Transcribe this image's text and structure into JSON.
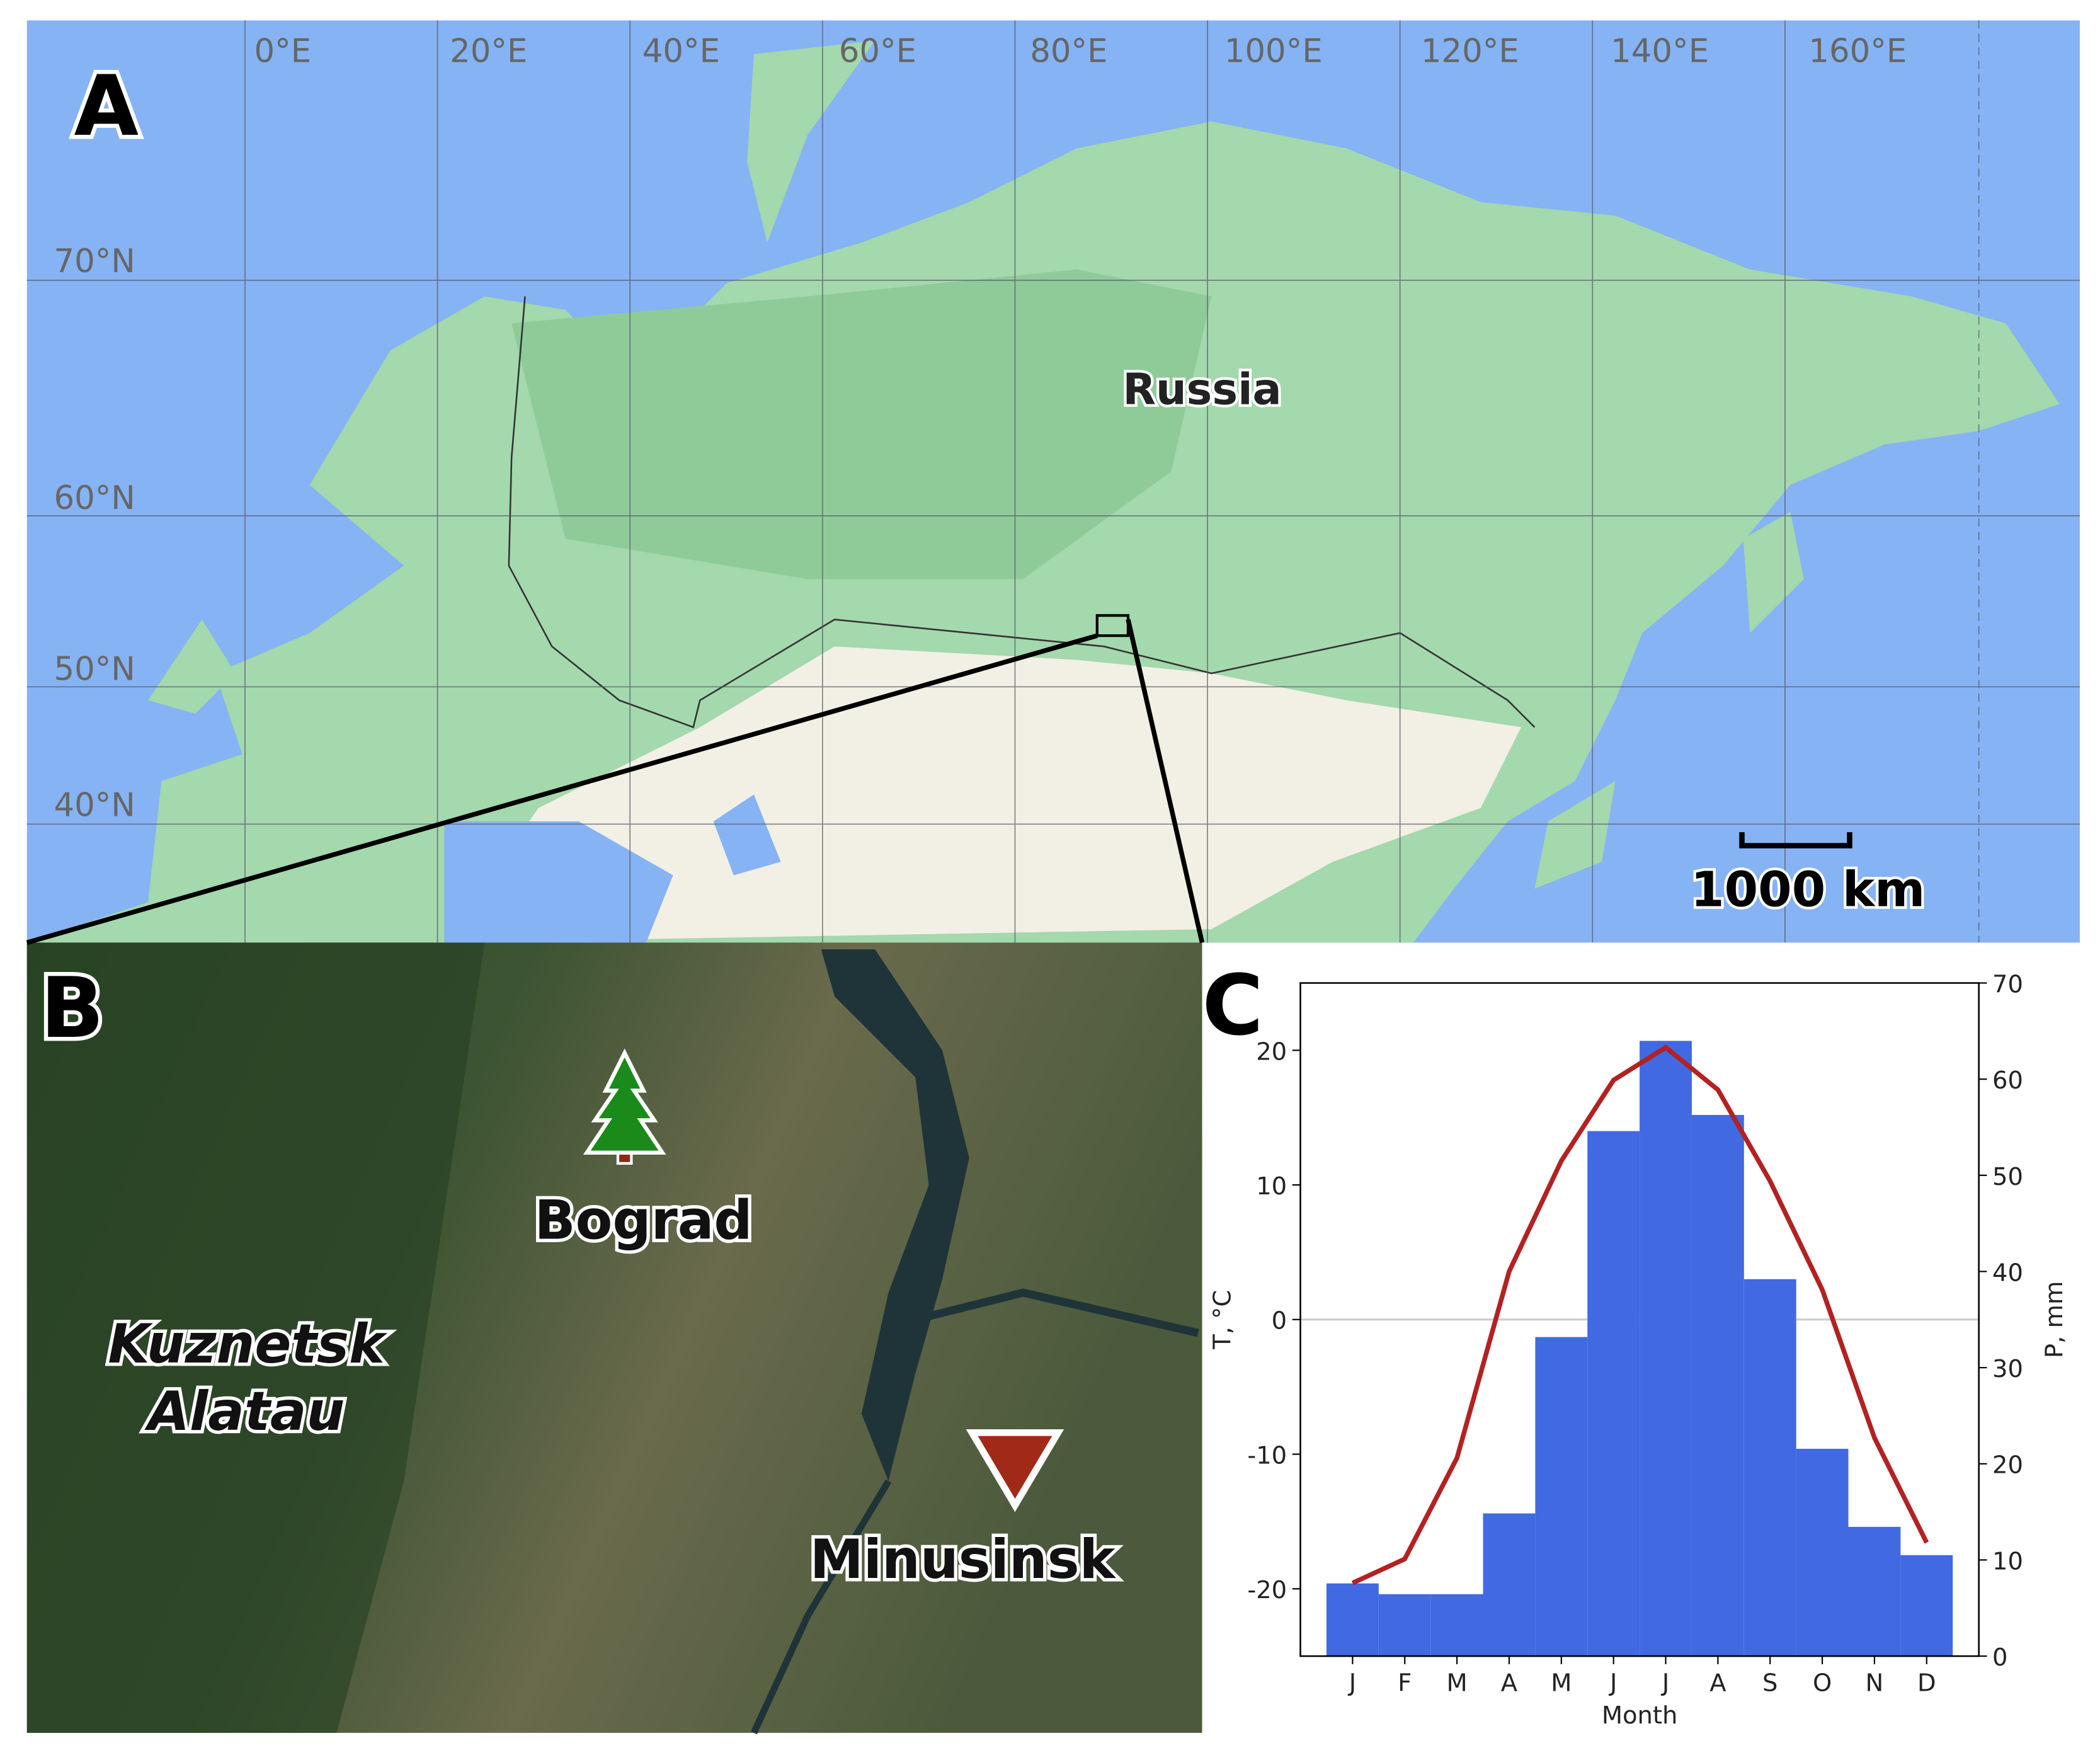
{
  "panels": {
    "a": {
      "label": "A",
      "lon_labels": [
        "0°E",
        "20°E",
        "40°E",
        "60°E",
        "80°E",
        "100°E",
        "120°E",
        "140°E",
        "160°E"
      ],
      "lat_labels": [
        "70°N",
        "60°N",
        "50°N",
        "40°N"
      ],
      "country": "Russia",
      "scale_bar": "1000 km"
    },
    "b": {
      "label": "B",
      "sites": [
        "Bograd",
        "Minusinsk"
      ],
      "region": [
        "Kuznetsk",
        "Alatau"
      ]
    },
    "c": {
      "label": "C"
    }
  },
  "chart_data": {
    "type": "bar",
    "categories": [
      "J",
      "F",
      "M",
      "A",
      "M",
      "J",
      "J",
      "A",
      "S",
      "O",
      "N",
      "D"
    ],
    "x_label": "Month",
    "y_label": "T, °C",
    "y2_label": "P, mm",
    "series": [
      {
        "type": "bar",
        "color": "#4169e1",
        "values": [
          -19.6,
          -20.4,
          -20.4,
          -14.4,
          -1.3,
          14.0,
          20.7,
          15.2,
          3.0,
          -9.6,
          -15.4,
          -17.5
        ]
      },
      {
        "type": "line",
        "axis": "y2",
        "color": "#b22222",
        "values": [
          7.6,
          10.1,
          20.6,
          40.0,
          51.5,
          59.9,
          63.3,
          58.9,
          49.4,
          38.1,
          22.7,
          11.8
        ]
      }
    ],
    "ylim": [
      -25,
      25
    ],
    "yticks": [
      -20,
      -10,
      0,
      10,
      20
    ],
    "y2lim": [
      0,
      70
    ],
    "y2ticks": [
      0,
      10,
      20,
      30,
      40,
      50,
      60,
      70
    ],
    "reference_line": 0
  }
}
